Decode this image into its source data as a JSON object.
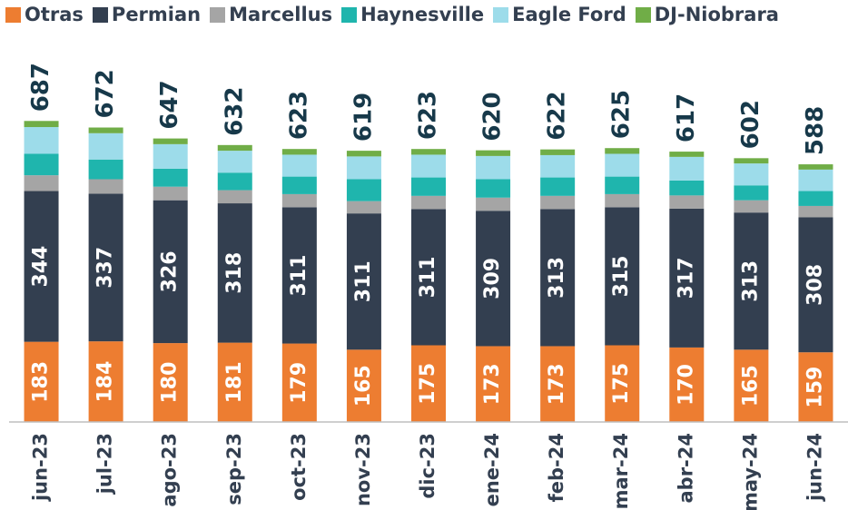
{
  "chart_data": {
    "type": "stacked_bar",
    "categories": [
      "jun-23",
      "jul-23",
      "ago-23",
      "sep-23",
      "oct-23",
      "nov-23",
      "dic-23",
      "ene-24",
      "feb-24",
      "mar-24",
      "abr-24",
      "may-24",
      "jun-24"
    ],
    "series": [
      {
        "name": "Otras",
        "color": "#ed7d31",
        "values": [
          183,
          184,
          180,
          181,
          179,
          165,
          175,
          173,
          173,
          175,
          170,
          165,
          159
        ]
      },
      {
        "name": "Permian",
        "color": "#333f50",
        "values": [
          344,
          337,
          326,
          318,
          311,
          311,
          311,
          309,
          313,
          315,
          317,
          313,
          308
        ]
      },
      {
        "name": "Marcellus",
        "color": "#a5a5a5",
        "values": [
          36,
          33,
          31,
          30,
          30,
          28,
          30,
          30,
          30,
          30,
          30,
          28,
          26
        ]
      },
      {
        "name": "Haynesville",
        "color": "#1fb5ad",
        "values": [
          49,
          45,
          41,
          40,
          40,
          50,
          42,
          42,
          42,
          40,
          34,
          34,
          34
        ]
      },
      {
        "name": "Eagle Ford",
        "color": "#9ddcea",
        "values": [
          61,
          60,
          56,
          50,
          50,
          52,
          52,
          53,
          51,
          52,
          54,
          50,
          49
        ]
      },
      {
        "name": "DJ-Niobrara",
        "color": "#70ad47",
        "values": [
          14,
          13,
          13,
          13,
          13,
          13,
          13,
          13,
          13,
          13,
          12,
          12,
          12
        ]
      }
    ],
    "totals": [
      687,
      672,
      647,
      632,
      623,
      619,
      623,
      620,
      622,
      625,
      617,
      602,
      588
    ],
    "ylim": [
      0,
      700
    ]
  }
}
